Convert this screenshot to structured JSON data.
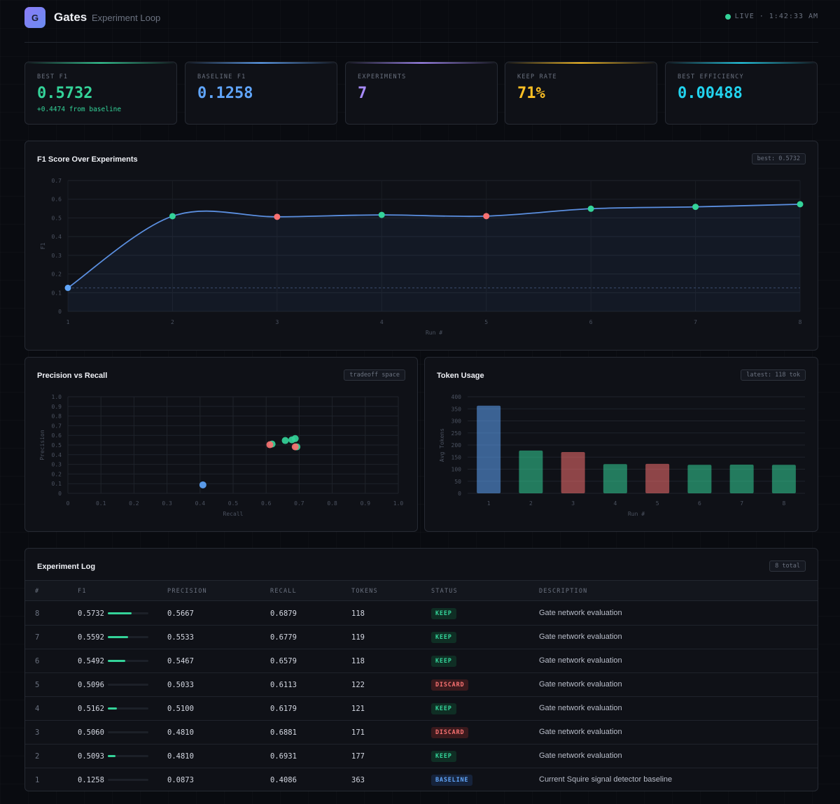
{
  "app": {
    "logo_letter": "G",
    "title": "Gates",
    "subtitle": "Experiment Loop",
    "live_label": "LIVE · 1:42:33 AM"
  },
  "stats": [
    {
      "label": "BEST F1",
      "value": "0.5732",
      "delta": "+0.4474 from baseline",
      "color": "#34d399"
    },
    {
      "label": "BASELINE F1",
      "value": "0.1258",
      "color": "#60a5fa"
    },
    {
      "label": "EXPERIMENTS",
      "value": "7",
      "color": "#a78bfa"
    },
    {
      "label": "KEEP RATE",
      "value": "71%",
      "color": "#fbbf24"
    },
    {
      "label": "BEST EFFICIENCY",
      "value": "0.00488",
      "color": "#22d3ee"
    }
  ],
  "colors": {
    "keep": "#34d399",
    "discard": "#f87171",
    "baseline": "#60a5fa",
    "line": "#5b8fe0"
  },
  "f1_panel": {
    "title": "F1 Score Over Experiments",
    "tag": "best: 0.5732"
  },
  "pr_panel": {
    "title": "Precision vs Recall",
    "tag": "tradeoff space"
  },
  "token_panel": {
    "title": "Token Usage",
    "tag": "latest: 118 tok"
  },
  "chart_data": [
    {
      "type": "line",
      "title": "F1 Score Over Experiments",
      "xlabel": "Run #",
      "ylabel": "F1",
      "x": [
        1,
        2,
        3,
        4,
        5,
        6,
        7,
        8
      ],
      "values": [
        0.1258,
        0.5093,
        0.506,
        0.5162,
        0.5096,
        0.5492,
        0.5592,
        0.5732
      ],
      "status": [
        "baseline",
        "keep",
        "discard",
        "keep",
        "discard",
        "keep",
        "keep",
        "keep"
      ],
      "ylim": [
        0,
        0.7
      ],
      "yticks": [
        "0",
        "0.1",
        "0.2",
        "0.3",
        "0.4",
        "0.5",
        "0.6",
        "0.7"
      ],
      "baseline_ref": 0.1258
    },
    {
      "type": "scatter",
      "title": "Precision vs Recall",
      "xlabel": "Recall",
      "ylabel": "Precision",
      "points": [
        {
          "x": 0.4086,
          "y": 0.0873,
          "status": "baseline"
        },
        {
          "x": 0.6931,
          "y": 0.481,
          "status": "keep"
        },
        {
          "x": 0.6881,
          "y": 0.481,
          "status": "discard"
        },
        {
          "x": 0.6179,
          "y": 0.51,
          "status": "keep"
        },
        {
          "x": 0.6113,
          "y": 0.5033,
          "status": "discard"
        },
        {
          "x": 0.6579,
          "y": 0.5467,
          "status": "keep"
        },
        {
          "x": 0.6779,
          "y": 0.5533,
          "status": "keep"
        },
        {
          "x": 0.6879,
          "y": 0.5667,
          "status": "keep"
        }
      ],
      "xlim": [
        0,
        1
      ],
      "ylim": [
        0,
        1
      ],
      "xticks": [
        "0",
        "0.1",
        "0.2",
        "0.3",
        "0.4",
        "0.5",
        "0.6",
        "0.7",
        "0.8",
        "0.9",
        "1.0"
      ],
      "yticks": [
        "0",
        "0.1",
        "0.2",
        "0.3",
        "0.4",
        "0.5",
        "0.6",
        "0.7",
        "0.8",
        "0.9",
        "1.0"
      ]
    },
    {
      "type": "bar",
      "title": "Token Usage",
      "xlabel": "Run #",
      "ylabel": "Avg Tokens",
      "categories": [
        "1",
        "2",
        "3",
        "4",
        "5",
        "6",
        "7",
        "8"
      ],
      "values": [
        363,
        177,
        171,
        121,
        122,
        118,
        119,
        118
      ],
      "status": [
        "baseline",
        "keep",
        "discard",
        "keep",
        "discard",
        "keep",
        "keep",
        "keep"
      ],
      "ylim": [
        0,
        400
      ],
      "yticks": [
        "0",
        "50",
        "100",
        "150",
        "200",
        "250",
        "300",
        "350",
        "400"
      ]
    }
  ],
  "log": {
    "title": "Experiment Log",
    "tag": "8 total",
    "columns": [
      "#",
      "F1",
      "PRECISION",
      "RECALL",
      "TOKENS",
      "STATUS",
      "DESCRIPTION"
    ],
    "rows": [
      {
        "n": "8",
        "f1": "0.5732",
        "f1_val": 0.5732,
        "precision": "0.5667",
        "recall": "0.6879",
        "tokens": "118",
        "status": "KEEP",
        "description": "Gate network evaluation"
      },
      {
        "n": "7",
        "f1": "0.5592",
        "f1_val": 0.5592,
        "precision": "0.5533",
        "recall": "0.6779",
        "tokens": "119",
        "status": "KEEP",
        "description": "Gate network evaluation"
      },
      {
        "n": "6",
        "f1": "0.5492",
        "f1_val": 0.5492,
        "precision": "0.5467",
        "recall": "0.6579",
        "tokens": "118",
        "status": "KEEP",
        "description": "Gate network evaluation"
      },
      {
        "n": "5",
        "f1": "0.5096",
        "f1_val": 0.5096,
        "precision": "0.5033",
        "recall": "0.6113",
        "tokens": "122",
        "status": "DISCARD",
        "description": "Gate network evaluation"
      },
      {
        "n": "4",
        "f1": "0.5162",
        "f1_val": 0.5162,
        "precision": "0.5100",
        "recall": "0.6179",
        "tokens": "121",
        "status": "KEEP",
        "description": "Gate network evaluation"
      },
      {
        "n": "3",
        "f1": "0.5060",
        "f1_val": 0.506,
        "precision": "0.4810",
        "recall": "0.6881",
        "tokens": "171",
        "status": "DISCARD",
        "description": "Gate network evaluation"
      },
      {
        "n": "2",
        "f1": "0.5093",
        "f1_val": 0.5093,
        "precision": "0.4810",
        "recall": "0.6931",
        "tokens": "177",
        "status": "KEEP",
        "description": "Gate network evaluation"
      },
      {
        "n": "1",
        "f1": "0.1258",
        "f1_val": 0.1258,
        "precision": "0.0873",
        "recall": "0.4086",
        "tokens": "363",
        "status": "BASELINE",
        "description": "Current Squire signal detector baseline"
      }
    ]
  }
}
